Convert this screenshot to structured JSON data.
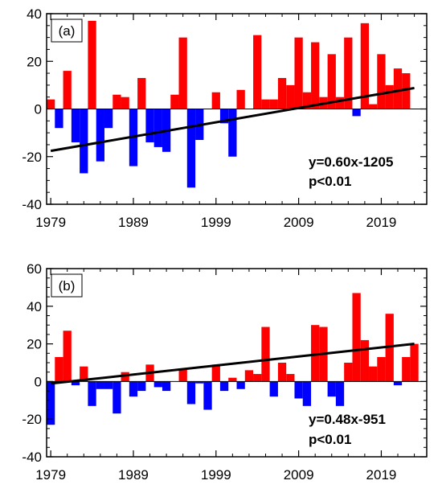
{
  "chart_data": [
    {
      "type": "bar",
      "panel_label": "(a)",
      "years": [
        1979,
        1980,
        1981,
        1982,
        1983,
        1984,
        1985,
        1986,
        1987,
        1988,
        1989,
        1990,
        1991,
        1992,
        1993,
        1994,
        1995,
        1996,
        1997,
        1998,
        1999,
        2000,
        2001,
        2002,
        2003,
        2004,
        2005,
        2006,
        2007,
        2008,
        2009,
        2010,
        2011,
        2012,
        2013,
        2014,
        2015,
        2016,
        2017,
        2018,
        2019,
        2020,
        2021,
        2022,
        2023
      ],
      "values": [
        4,
        -8,
        16,
        -14,
        -27,
        37,
        -22,
        -8,
        6,
        5,
        -24,
        13,
        -14,
        -16,
        -18,
        6,
        30,
        -33,
        -13,
        0,
        7,
        -6,
        -20,
        8,
        0,
        31,
        4,
        4,
        13,
        10,
        30,
        7,
        28,
        5,
        23,
        5,
        30,
        -3,
        36,
        2,
        23,
        10,
        17,
        15,
        0
      ],
      "xlim": [
        1978.5,
        2024.5
      ],
      "ylim": [
        -40,
        40
      ],
      "yticks": [
        -40,
        -20,
        0,
        20,
        40
      ],
      "xticks": [
        "1979",
        "1989",
        "1999",
        "2009",
        "2019"
      ],
      "trend": {
        "slope": 0.6,
        "intercept": -1205
      },
      "annotation": [
        "y=0.60x-1205",
        "p<0.01"
      ],
      "colors": {
        "positive": "#ff0000",
        "negative": "#0000ff",
        "trend": "#000000"
      }
    },
    {
      "type": "bar",
      "panel_label": "(b)",
      "years": [
        1979,
        1980,
        1981,
        1982,
        1983,
        1984,
        1985,
        1986,
        1987,
        1988,
        1989,
        1990,
        1991,
        1992,
        1993,
        1994,
        1995,
        1996,
        1997,
        1998,
        1999,
        2000,
        2001,
        2002,
        2003,
        2004,
        2005,
        2006,
        2007,
        2008,
        2009,
        2010,
        2011,
        2012,
        2013,
        2014,
        2015,
        2016,
        2017,
        2018,
        2019,
        2020,
        2021,
        2022,
        2023
      ],
      "values": [
        -23,
        13,
        27,
        -2,
        8,
        -13,
        -4,
        -4,
        -17,
        5,
        -8,
        -5,
        9,
        -3,
        -5,
        0,
        7,
        -12,
        -1,
        -15,
        9,
        -5,
        2,
        -4,
        6,
        4,
        29,
        -8,
        10,
        4,
        -9,
        -13,
        30,
        29,
        -8,
        -13,
        10,
        47,
        22,
        8,
        13,
        36,
        -2,
        13,
        20
      ],
      "xlim": [
        1978.5,
        2024.5
      ],
      "ylim": [
        -40,
        60
      ],
      "yticks": [
        -40,
        -20,
        0,
        20,
        40,
        60
      ],
      "xticks": [
        "1979",
        "1989",
        "1999",
        "2009",
        "2019"
      ],
      "trend": {
        "slope": 0.48,
        "intercept": -951
      },
      "annotation": [
        "y=0.48x-951",
        "p<0.01"
      ],
      "colors": {
        "positive": "#ff0000",
        "negative": "#0000ff",
        "trend": "#000000"
      }
    }
  ]
}
